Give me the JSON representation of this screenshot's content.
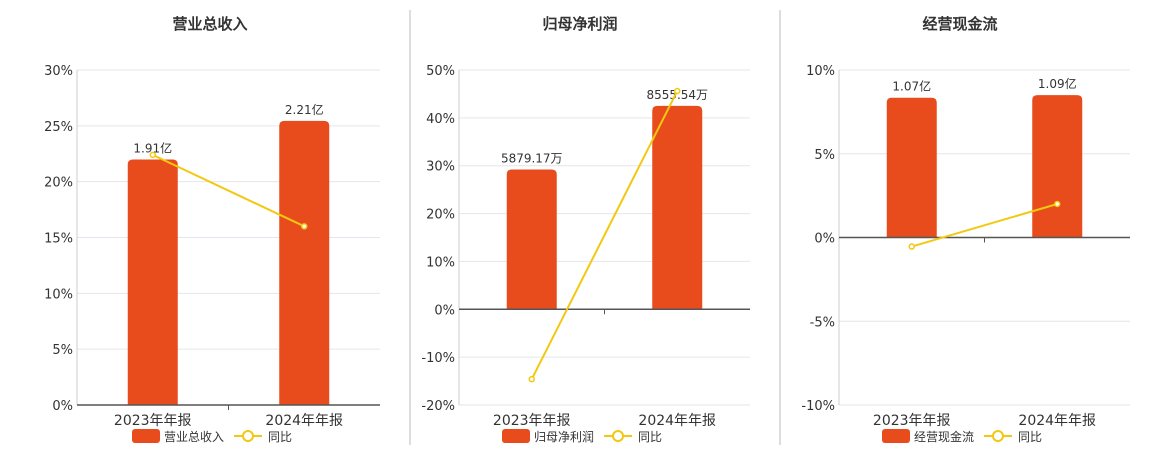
{
  "colors": {
    "bar": "#e84c1c",
    "line": "#f2c811",
    "grid": "#e3e6ee",
    "axis": "#555555",
    "divider": "#bbbbbb"
  },
  "chart_data": [
    {
      "type": "bar+line",
      "title": "营业总收入",
      "categories": [
        "2023年年报",
        "2024年年报"
      ],
      "bar_series": {
        "name": "营业总收入",
        "values": [
          1.91,
          2.21
        ],
        "labels": [
          "1.91亿",
          "2.21亿"
        ],
        "unit": "亿"
      },
      "line_series": {
        "name": "同比",
        "values": [
          22.4,
          16.0
        ],
        "unit": "%"
      },
      "y_ticks": [
        "0%",
        "5%",
        "10%",
        "15%",
        "20%",
        "25%",
        "30%"
      ],
      "ylim": [
        0,
        30
      ],
      "grid": true,
      "legend": "bottom"
    },
    {
      "type": "bar+line",
      "title": "归母净利润",
      "categories": [
        "2023年年报",
        "2024年年报"
      ],
      "bar_series": {
        "name": "归母净利润",
        "values": [
          5879.17,
          8555.54
        ],
        "labels": [
          "5879.17万",
          "8555.54万"
        ],
        "unit": "万"
      },
      "line_series": {
        "name": "同比",
        "values": [
          -14.6,
          45.6
        ],
        "unit": "%"
      },
      "y_ticks": [
        "-20%",
        "-10%",
        "0%",
        "10%",
        "20%",
        "30%",
        "40%",
        "50%"
      ],
      "ylim": [
        -20,
        50
      ],
      "grid": true,
      "legend": "bottom"
    },
    {
      "type": "bar+line",
      "title": "经营现金流",
      "categories": [
        "2023年年报",
        "2024年年报"
      ],
      "bar_series": {
        "name": "经营现金流",
        "values": [
          1.07,
          1.09
        ],
        "labels": [
          "1.07亿",
          "1.09亿"
        ],
        "unit": "亿"
      },
      "line_series": {
        "name": "同比",
        "values": [
          -0.54,
          2.0
        ],
        "unit": "%"
      },
      "y_ticks": [
        "-10%",
        "-5%",
        "0%",
        "5%",
        "10%"
      ],
      "ylim": [
        -10,
        10
      ],
      "grid": true,
      "legend": "bottom"
    }
  ]
}
